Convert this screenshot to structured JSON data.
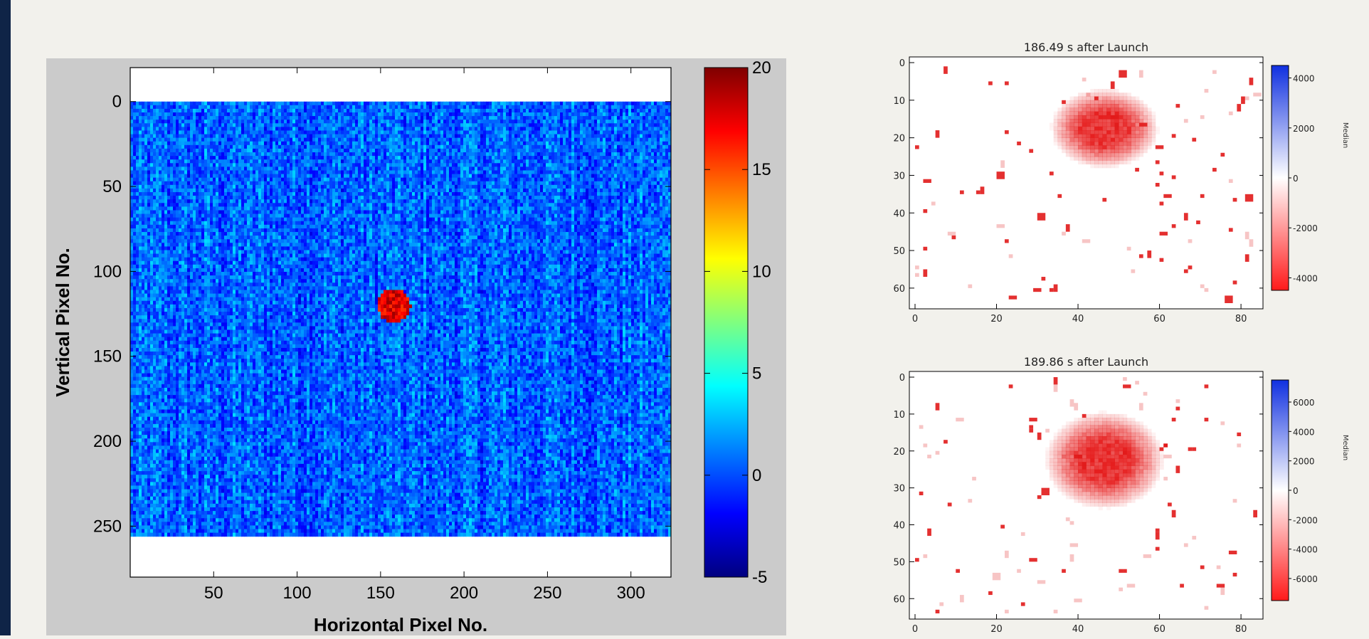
{
  "chart_data": [
    {
      "type": "heatmap",
      "title": "",
      "xlabel": "Horizontal Pixel No.",
      "ylabel": "Vertical Pixel No.",
      "xlim": [
        0,
        324
      ],
      "ylim": [
        256,
        0
      ],
      "xticks": [
        "50",
        "100",
        "150",
        "200",
        "250",
        "300"
      ],
      "yticks": [
        "0",
        "50",
        "100",
        "150",
        "200",
        "250"
      ],
      "colormap": "jet",
      "colorbar": {
        "min": -5,
        "max": 20,
        "ticks": [
          "20",
          "15",
          "10",
          "5",
          "0",
          "-5"
        ]
      },
      "background_level": 0.5,
      "hotspot": {
        "x": 158,
        "y": 120,
        "radius": 10,
        "value": 17.5
      },
      "grid": false
    },
    {
      "type": "heatmap",
      "title": "186.49  s  after  Launch",
      "xlim": [
        0,
        84
      ],
      "ylim": [
        64,
        0
      ],
      "xticks": [
        "0",
        "20",
        "40",
        "60",
        "80"
      ],
      "yticks": [
        "0",
        "10",
        "20",
        "30",
        "40",
        "50",
        "60"
      ],
      "colorbar": {
        "min": -4500,
        "max": 4500,
        "ticks": [
          "4000",
          "2000",
          "0",
          "-2000",
          "-4000"
        ],
        "label": "Median"
      },
      "blob": {
        "x": 46,
        "y": 17,
        "rx": 10,
        "ry": 8
      }
    },
    {
      "type": "heatmap",
      "title": "189.86  s  after  Launch",
      "xlim": [
        0,
        84
      ],
      "ylim": [
        64,
        0
      ],
      "xticks": [
        "0",
        "20",
        "40",
        "60",
        "80"
      ],
      "yticks": [
        "0",
        "10",
        "20",
        "30",
        "40",
        "50",
        "60"
      ],
      "colorbar": {
        "min": -7500,
        "max": 7500,
        "ticks": [
          "6000",
          "4000",
          "2000",
          "0",
          "-2000",
          "-4000",
          "-6000"
        ],
        "label": "Median"
      },
      "blob": {
        "x": 46,
        "y": 22,
        "rx": 11,
        "ry": 10
      }
    }
  ],
  "colors": {
    "navy": "#0f2447",
    "panel": "#cbcbcb",
    "hot": "#e21b1b",
    "cool": "#1030e0"
  }
}
